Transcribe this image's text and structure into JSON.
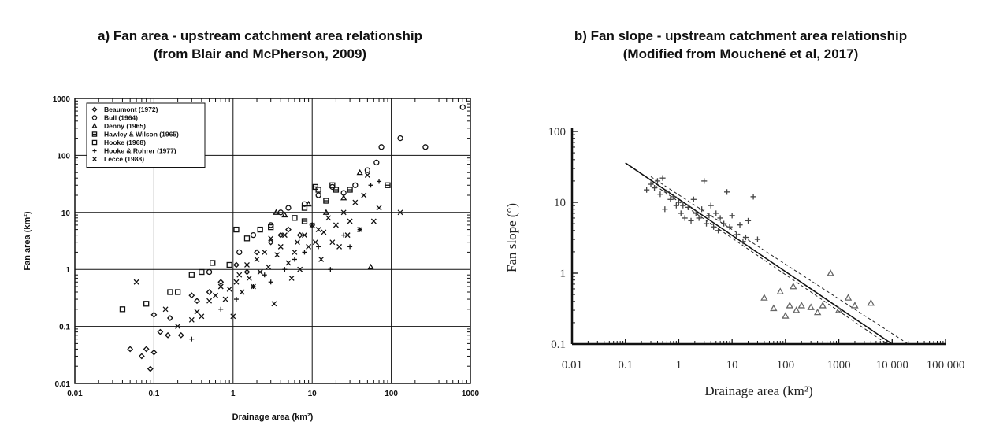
{
  "panels": {
    "a": {
      "title_line1": "a)  Fan area - upstream catchment area relationship",
      "title_line2": "(from Blair and McPherson, 2009)"
    },
    "b": {
      "title_line1": "b)  Fan slope - upstream catchment area relationship",
      "title_line2": "(Modified from Mouchené et al, 2017)"
    }
  },
  "chart_data": [
    {
      "type": "scatter",
      "title": "a)  Fan area - upstream catchment area relationship (from Blair and McPherson, 2009)",
      "xlabel": "Drainage area (km²)",
      "ylabel": "Fan area (km²)",
      "x_scale": "log",
      "y_scale": "log",
      "xlim": [
        0.01,
        1000
      ],
      "ylim": [
        0.01,
        1000
      ],
      "x_ticks": [
        "0.01",
        "0.1",
        "1",
        "10",
        "100",
        "1000"
      ],
      "y_ticks": [
        "0.01",
        "0.1",
        "1",
        "10",
        "100",
        "1000"
      ],
      "grid": true,
      "legend_position": "top-left",
      "series": [
        {
          "name": "Beaumont (1972)",
          "marker": "diamond",
          "x": [
            0.05,
            0.07,
            0.08,
            0.09,
            0.1,
            0.1,
            0.12,
            0.15,
            0.16,
            0.22,
            0.3,
            0.35,
            0.5,
            0.7,
            1.1,
            1.5,
            2,
            3,
            4,
            5,
            7,
            10
          ],
          "y": [
            0.04,
            0.03,
            0.04,
            0.018,
            0.035,
            0.16,
            0.08,
            0.07,
            0.14,
            0.07,
            0.35,
            0.28,
            0.4,
            0.6,
            1.2,
            0.9,
            2.0,
            3.0,
            4.0,
            5.0,
            4.0,
            6.0
          ]
        },
        {
          "name": "Bull (1964)",
          "marker": "circle",
          "x": [
            0.5,
            1.2,
            1.8,
            3,
            4,
            5,
            8,
            12,
            18,
            25,
            35,
            50,
            65,
            75,
            130,
            270,
            800
          ],
          "y": [
            0.9,
            2.0,
            4.0,
            6.0,
            10,
            12,
            14,
            20,
            28,
            22,
            30,
            55,
            75,
            140,
            200,
            140,
            700
          ]
        },
        {
          "name": "Denny (1965)",
          "marker": "triangle",
          "x": [
            3.5,
            4.5,
            9,
            15,
            25,
            40,
            55
          ],
          "y": [
            10,
            9,
            14,
            10,
            18,
            50,
            1.1
          ]
        },
        {
          "name": "Hawley & Wilson (1965)",
          "marker": "square-dot",
          "x": [
            8,
            11,
            15,
            20,
            30,
            90
          ],
          "y": [
            7,
            28,
            16,
            25,
            25,
            30
          ]
        },
        {
          "name": "Hooke (1968)",
          "marker": "square",
          "x": [
            0.04,
            0.08,
            0.16,
            0.2,
            0.3,
            0.4,
            0.55,
            0.9,
            1.1,
            1.5,
            2.2,
            3,
            6,
            8,
            12,
            18
          ],
          "y": [
            0.2,
            0.25,
            0.4,
            0.4,
            0.8,
            0.9,
            1.3,
            1.2,
            5.0,
            3.5,
            5.0,
            5.5,
            8.0,
            12,
            25,
            30
          ]
        },
        {
          "name": "Hooke & Rohrer (1977)",
          "marker": "plus",
          "x": [
            0.3,
            0.7,
            1.1,
            1.8,
            2.5,
            3,
            4.5,
            6,
            8,
            12,
            17,
            25,
            30,
            40,
            55,
            70
          ],
          "y": [
            0.06,
            0.2,
            0.3,
            0.5,
            0.8,
            0.6,
            1.0,
            1.5,
            2.0,
            2.5,
            1.0,
            4.0,
            2.5,
            5.0,
            30,
            35
          ]
        },
        {
          "name": "Lecce (1988)",
          "marker": "x",
          "x": [
            0.06,
            0.14,
            0.2,
            0.3,
            0.35,
            0.4,
            0.5,
            0.6,
            0.7,
            0.8,
            0.9,
            1.0,
            1.1,
            1.2,
            1.3,
            1.5,
            1.6,
            1.8,
            2.0,
            2.2,
            2.5,
            2.8,
            3.0,
            3.3,
            3.6,
            4.0,
            4.5,
            5.0,
            5.5,
            6.0,
            6.5,
            7.0,
            8.0,
            9.0,
            10,
            11,
            12,
            13,
            14,
            16,
            18,
            20,
            22,
            25,
            28,
            30,
            35,
            40,
            45,
            50,
            60,
            70,
            130
          ],
          "y": [
            0.6,
            0.2,
            0.1,
            0.13,
            0.18,
            0.15,
            0.28,
            0.35,
            0.5,
            0.3,
            0.45,
            0.15,
            0.6,
            0.8,
            0.4,
            1.2,
            0.7,
            0.5,
            1.5,
            0.9,
            2.0,
            1.1,
            3.5,
            0.25,
            1.8,
            2.5,
            4.0,
            1.3,
            0.7,
            2.0,
            3.0,
            1.0,
            4.0,
            2.5,
            6.0,
            3.0,
            5.0,
            1.5,
            4.5,
            8.0,
            3.0,
            6.0,
            2.5,
            10,
            4.0,
            7.0,
            15,
            5.0,
            20,
            45,
            7.0,
            12,
            10
          ]
        }
      ]
    },
    {
      "type": "scatter",
      "title": "b)  Fan slope - upstream catchment area relationship (Modified from Mouchené et al, 2017)",
      "xlabel": "Drainage area (km²)",
      "ylabel": "Fan slope (°)",
      "x_scale": "log",
      "y_scale": "log",
      "xlim": [
        0.01,
        100000
      ],
      "ylim": [
        0.1,
        100
      ],
      "x_ticks": [
        "0.01",
        "0.1",
        "1",
        "10",
        "100",
        "1000",
        "10 000",
        "100 000"
      ],
      "y_ticks": [
        "0.1",
        "1",
        "10",
        "100"
      ],
      "grid": false,
      "series": [
        {
          "marker": "plus",
          "x": [
            0.25,
            0.3,
            0.35,
            0.4,
            0.45,
            0.5,
            0.55,
            0.6,
            0.7,
            0.8,
            0.9,
            1.0,
            1.1,
            1.2,
            1.3,
            1.5,
            1.7,
            1.9,
            2.1,
            2.4,
            2.7,
            3.0,
            3.3,
            3.7,
            4.0,
            4.5,
            5.0,
            5.5,
            6.0,
            7.0,
            8.0,
            9.0,
            10,
            12,
            14,
            16,
            18,
            20,
            25,
            30
          ],
          "y": [
            15,
            18,
            16,
            20,
            13,
            22,
            8,
            14,
            11,
            12,
            9,
            10,
            7,
            9,
            6,
            8.5,
            5.5,
            11,
            7,
            6,
            8,
            20,
            5,
            6.5,
            9,
            4.5,
            7,
            4,
            6,
            5,
            14,
            4.5,
            6.5,
            3.5,
            4.8,
            2.8,
            3.2,
            5.5,
            12,
            3.0
          ]
        },
        {
          "marker": "triangle",
          "x": [
            40,
            60,
            80,
            100,
            120,
            140,
            160,
            200,
            300,
            400,
            500,
            700,
            1000,
            1500,
            2000,
            4000
          ],
          "y": [
            0.45,
            0.32,
            0.55,
            0.25,
            0.35,
            0.65,
            0.3,
            0.35,
            0.33,
            0.28,
            0.35,
            1.0,
            0.3,
            0.45,
            0.35,
            0.38
          ]
        }
      ],
      "fit_line": {
        "x": [
          0.1,
          10000
        ],
        "y": [
          36,
          0.1
        ]
      },
      "confidence_upper": {
        "x": [
          0.3,
          20000
        ],
        "y": [
          23,
          0.1
        ]
      },
      "confidence_lower": {
        "x": [
          0.3,
          8000
        ],
        "y": [
          19,
          0.1
        ]
      }
    }
  ]
}
